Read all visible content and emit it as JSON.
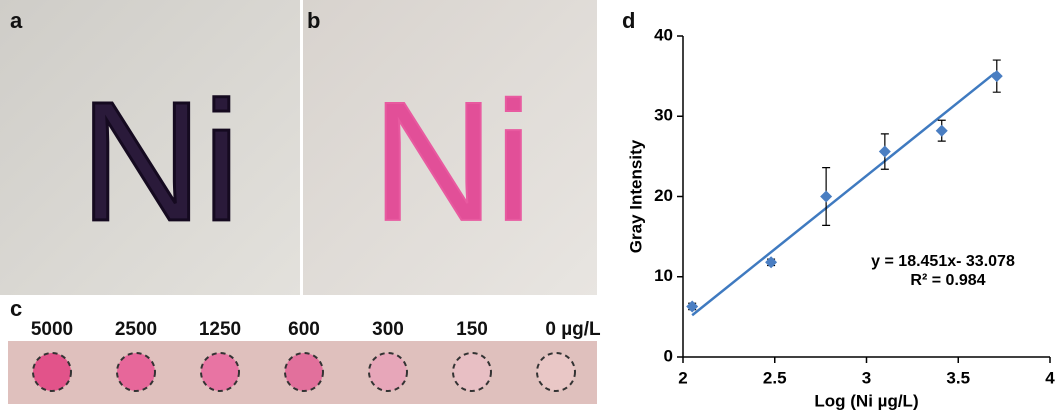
{
  "panels": {
    "a": "a",
    "b": "b",
    "c": "c",
    "d": "d"
  },
  "photos": {
    "a_text": "Ni",
    "b_text": "Ni"
  },
  "spots": [
    {
      "label": "5000",
      "color": "#e2538a"
    },
    {
      "label": "2500",
      "color": "#e7679a"
    },
    {
      "label": "1250",
      "color": "#e874a3"
    },
    {
      "label": "600",
      "color": "#e2709c"
    },
    {
      "label": "300",
      "color": "#e7a6b9"
    },
    {
      "label": "150",
      "color": "#e8bfc4"
    },
    {
      "label": "0 µg/L",
      "color": "#e9c7c6"
    }
  ],
  "chart_data": {
    "type": "scatter",
    "xlabel": "Log  (Ni µg/L)",
    "ylabel": "Gray Intensity",
    "xlim": [
      2,
      4
    ],
    "xticks": [
      2,
      2.5,
      3,
      3.5,
      4
    ],
    "ylim": [
      0,
      40
    ],
    "yticks": [
      0,
      10,
      20,
      30,
      40
    ],
    "series": [
      {
        "color": "#4a7ec2",
        "x": [
          2.05,
          2.48,
          2.78,
          3.1,
          3.41,
          3.71
        ],
        "values": [
          6.3,
          11.8,
          20,
          25.6,
          28.2,
          35
        ],
        "errors": [
          0.4,
          0.4,
          3.6,
          2.2,
          1.3,
          2
        ]
      }
    ],
    "trendline": {
      "color": "#3f7ac0",
      "x": [
        2.05,
        3.7
      ],
      "values": [
        5.2,
        35.4
      ]
    },
    "annotations": [
      "y = 18.451x- 33.078",
      "R² = 0.984"
    ]
  }
}
